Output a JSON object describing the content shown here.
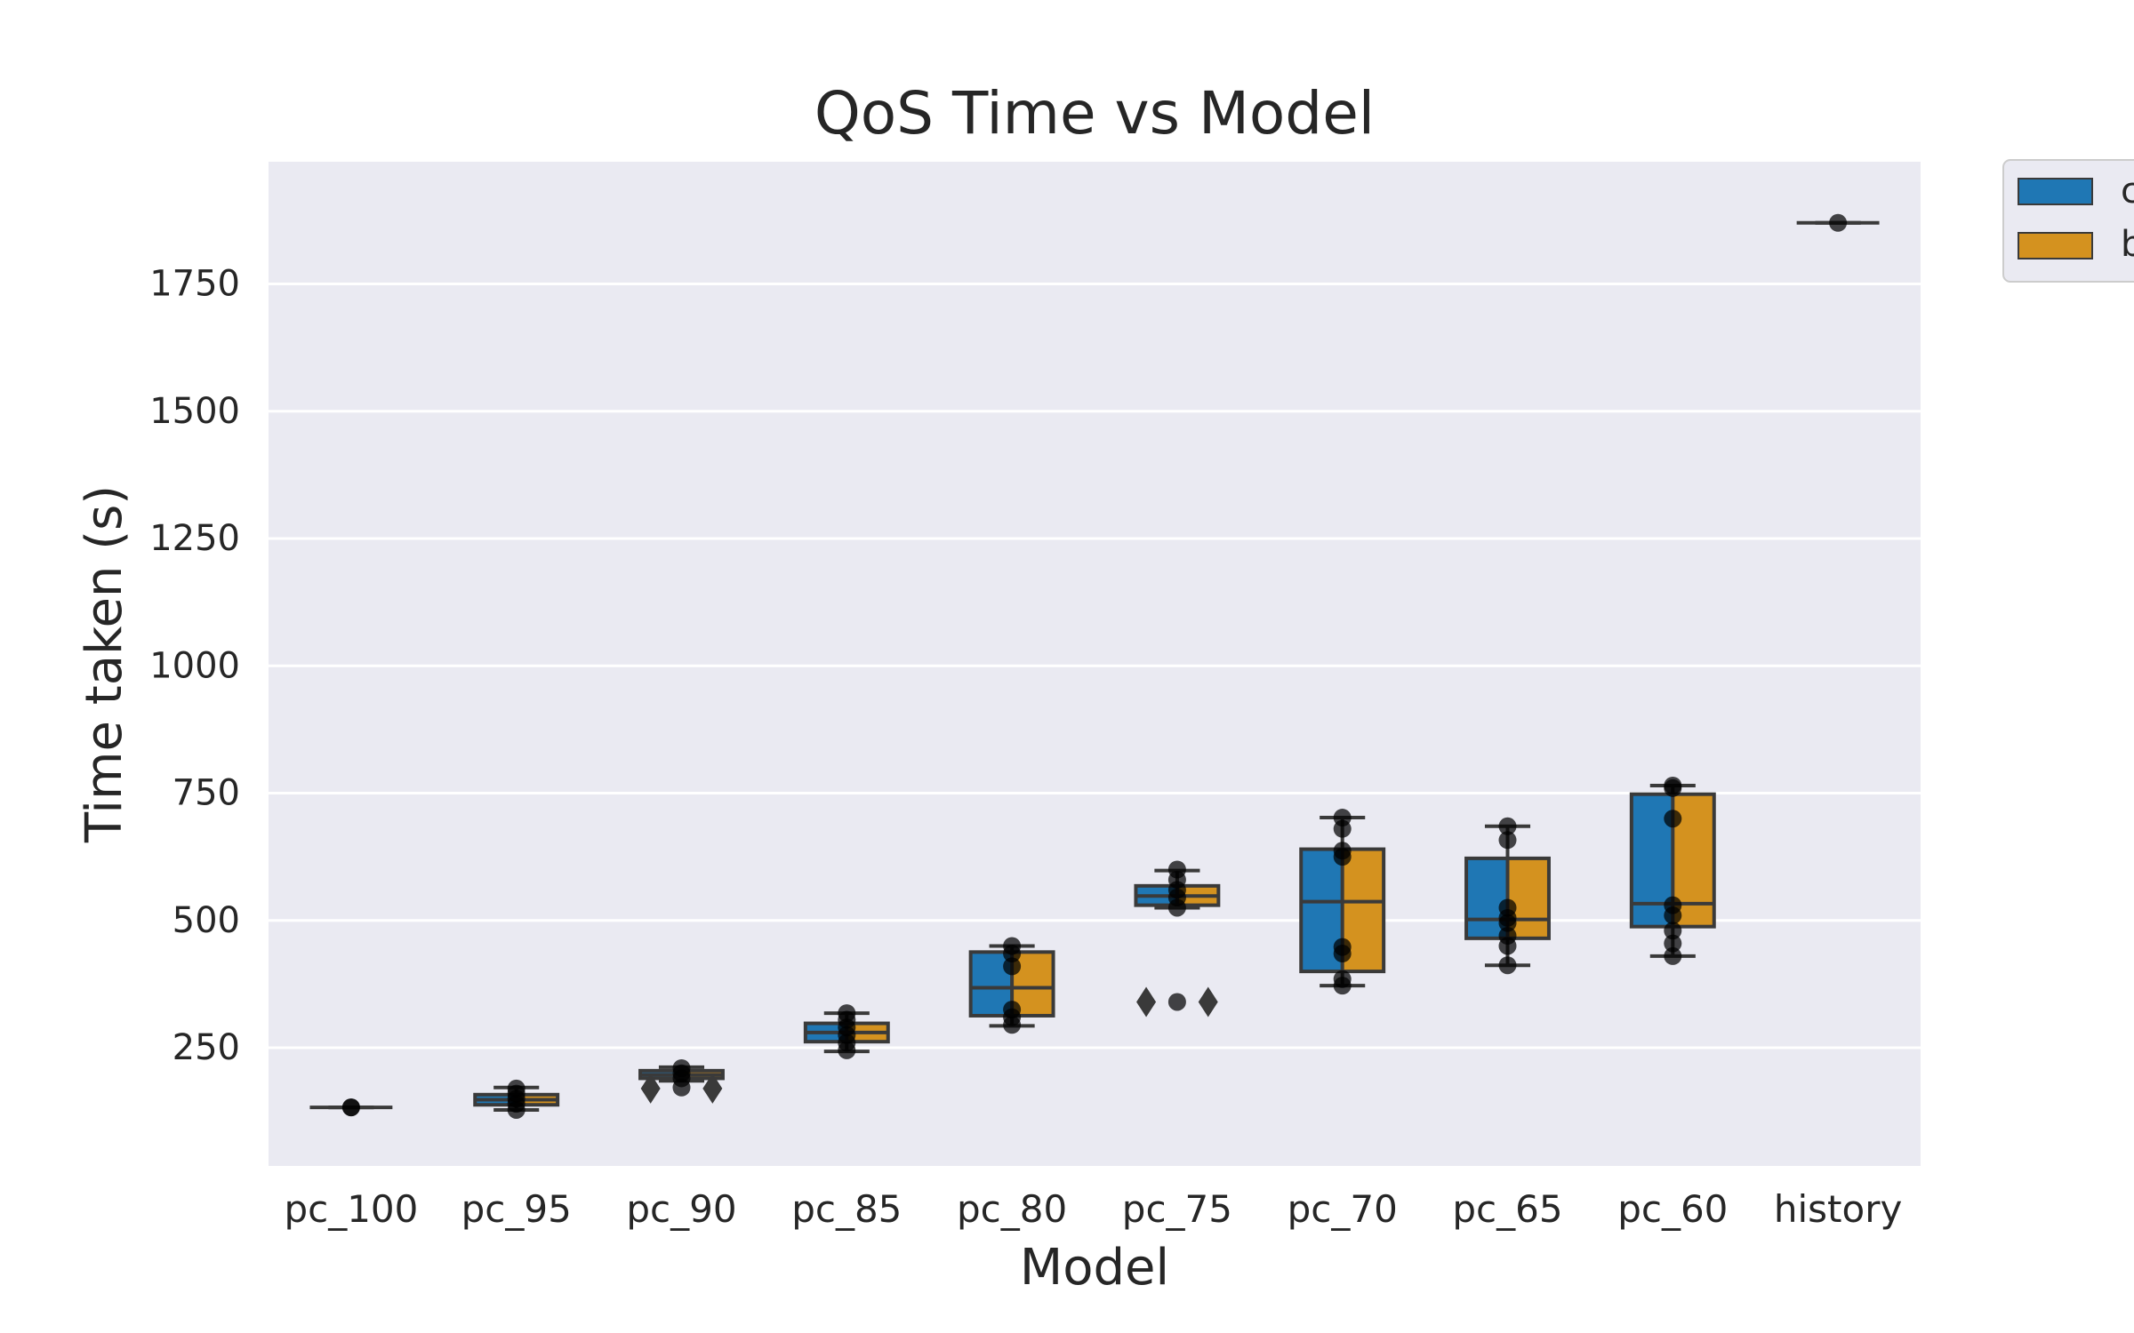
{
  "chart_data": {
    "type": "box",
    "title": "QoS Time vs Model",
    "xlabel": "Model",
    "ylabel": "Time taken (s)",
    "ylim": [
      18,
      1990
    ],
    "yticks": [
      250,
      500,
      750,
      1000,
      1250,
      1500,
      1750
    ],
    "grid": true,
    "legend_placement": "outside-top-right",
    "legend_entries_visible": [
      "c",
      "b"
    ],
    "categories": [
      "pc_100",
      "pc_95",
      "pc_90",
      "pc_85",
      "pc_80",
      "pc_75",
      "pc_70",
      "pc_65",
      "pc_60",
      "history"
    ],
    "series": [
      {
        "name": "c",
        "color": "#1f77b4"
      },
      {
        "name": "b",
        "color": "#d4921f"
      }
    ],
    "boxes": [
      {
        "category": "pc_100",
        "whisker_low": 133,
        "q1": 133,
        "median": 133,
        "q3": 133,
        "whisker_high": 133,
        "outliers": [],
        "points": [
          133,
          133
        ]
      },
      {
        "category": "pc_95",
        "whisker_low": 128,
        "q1": 138,
        "median": 148,
        "q3": 158,
        "whisker_high": 172,
        "outliers": [],
        "points": [
          128,
          140,
          150,
          160,
          170
        ]
      },
      {
        "category": "pc_90",
        "whisker_low": 185,
        "q1": 190,
        "median": 197,
        "q3": 205,
        "whisker_high": 212,
        "outliers": [
          170,
          170
        ],
        "points": [
          172,
          190,
          200,
          210
        ]
      },
      {
        "category": "pc_85",
        "whisker_low": 243,
        "q1": 262,
        "median": 280,
        "q3": 298,
        "whisker_high": 318,
        "outliers": [],
        "points": [
          245,
          260,
          275,
          290,
          305,
          318
        ]
      },
      {
        "category": "pc_80",
        "whisker_low": 293,
        "q1": 313,
        "median": 368,
        "q3": 438,
        "whisker_high": 450,
        "outliers": [],
        "points": [
          295,
          310,
          325,
          410,
          435,
          450
        ]
      },
      {
        "category": "pc_75",
        "whisker_low": 525,
        "q1": 530,
        "median": 548,
        "q3": 568,
        "whisker_high": 598,
        "outliers": [
          340,
          340
        ],
        "points": [
          525,
          545,
          560,
          580,
          600,
          340
        ]
      },
      {
        "category": "pc_70",
        "whisker_low": 372,
        "q1": 400,
        "median": 537,
        "q3": 640,
        "whisker_high": 702,
        "outliers": [],
        "points": [
          372,
          385,
          435,
          448,
          625,
          637,
          680,
          702
        ]
      },
      {
        "category": "pc_65",
        "whisker_low": 412,
        "q1": 465,
        "median": 502,
        "q3": 622,
        "whisker_high": 685,
        "outliers": [],
        "points": [
          412,
          450,
          470,
          495,
          505,
          525,
          658,
          685
        ]
      },
      {
        "category": "pc_60",
        "whisker_low": 430,
        "q1": 488,
        "median": 533,
        "q3": 748,
        "whisker_high": 765,
        "outliers": [],
        "points": [
          430,
          455,
          480,
          510,
          530,
          700,
          760,
          765
        ]
      },
      {
        "category": "history",
        "whisker_low": 1870,
        "q1": 1870,
        "median": 1870,
        "q3": 1870,
        "whisker_high": 1870,
        "outliers": [],
        "points": [
          1870
        ]
      }
    ]
  }
}
